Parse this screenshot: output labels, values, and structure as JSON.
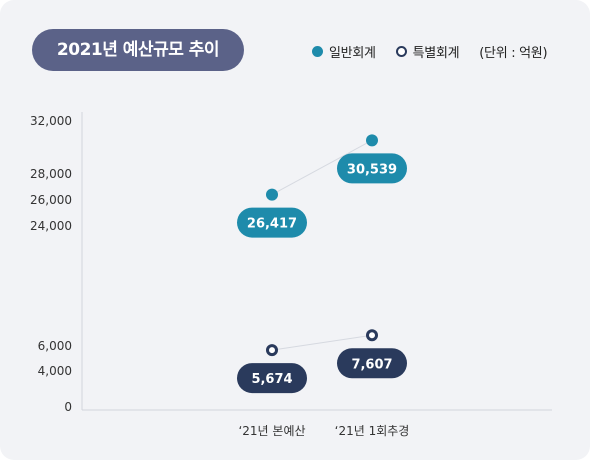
{
  "header": {
    "title": "2021년 예산규모 추이",
    "legend_general": "일반회계",
    "legend_special": "특별회계",
    "unit": "(단위 : 억원)"
  },
  "colors": {
    "general": "#1e8bab",
    "special": "#2a3a5c",
    "title_bg": "#5b6288",
    "connector": "#d6d9e0"
  },
  "chart_data": {
    "type": "line",
    "categories": [
      "‘21년 본예산",
      "‘21년 1회추경"
    ],
    "series": [
      {
        "name": "일반회계",
        "values": [
          26417,
          30539
        ],
        "labels": [
          "26,417",
          "30,539"
        ]
      },
      {
        "name": "특별회계",
        "values": [
          5674,
          7607
        ],
        "labels": [
          "5,674",
          "7,607"
        ]
      }
    ],
    "yticks": [
      "0",
      "4,000",
      "6,000",
      "24,000",
      "26,000",
      "28,000",
      "32,000"
    ],
    "ylim": [
      0,
      32000
    ],
    "axis_break": true,
    "legend_position": "top-right"
  }
}
